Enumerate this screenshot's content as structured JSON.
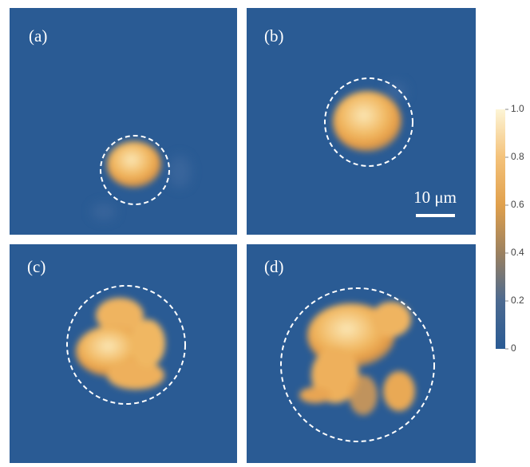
{
  "panels": [
    {
      "label": "(a)"
    },
    {
      "label": "(b)"
    },
    {
      "label": "(c)"
    },
    {
      "label": "(d)"
    }
  ],
  "scale_bar": {
    "label": "10 μm"
  },
  "colorbar": {
    "range": [
      0,
      1
    ],
    "ticks": [
      {
        "value": 1,
        "label": "1.0"
      },
      0.8,
      0.6,
      0.4,
      0.2,
      0
    ]
  }
}
